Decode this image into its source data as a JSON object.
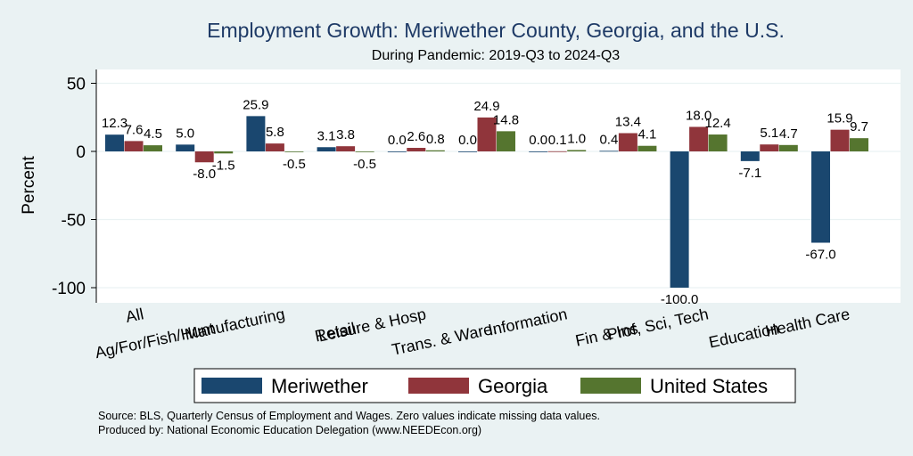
{
  "chart_data": {
    "type": "bar",
    "title": "Employment Growth: Meriwether County, Georgia, and the U.S.",
    "subtitle": "During Pandemic: 2019-Q3 to 2024-Q3",
    "ylabel": "Percent",
    "xlabel": "",
    "ylim": [
      -110,
      55
    ],
    "yticks": [
      50,
      0,
      -50,
      -100
    ],
    "grid": true,
    "legend_position": "bottom",
    "categories": [
      "All",
      "Ag/For/Fish/Hunt",
      "Manufacturing",
      "Retail",
      "Leisure & Hosp",
      "Trans. & Ware.",
      "Information",
      "Fin & Ins",
      "Prof, Sci, Tech",
      "Education",
      "Health Care"
    ],
    "value_labels": {
      "Meriwether": [
        "12.3",
        "5.0",
        "25.9",
        "3.1",
        "0.0",
        "0.0",
        "0.0",
        "0.4",
        "-100.0",
        "-7.1",
        "-67.0"
      ],
      "Georgia": [
        "7.6",
        "-8.0",
        "5.8",
        "3.8",
        "2.6",
        "24.9",
        "0.1",
        "13.4",
        "18.0",
        "5.1",
        "15.9"
      ],
      "United States": [
        "4.5",
        "-1.5",
        "-0.5",
        "-0.5",
        "0.8",
        "14.8",
        "1.0",
        "4.1",
        "12.4",
        "4.7",
        "9.7"
      ]
    },
    "series": [
      {
        "name": "Meriwether",
        "color": "#1a476f",
        "values": [
          12.3,
          5.0,
          25.9,
          3.1,
          0.0,
          0.0,
          0.0,
          0.4,
          -100.0,
          -7.1,
          -67.0
        ]
      },
      {
        "name": "Georgia",
        "color": "#90353b",
        "values": [
          7.6,
          -8.0,
          5.8,
          3.8,
          2.6,
          24.9,
          0.1,
          13.4,
          18.0,
          5.1,
          15.9
        ]
      },
      {
        "name": "United States",
        "color": "#55752f",
        "values": [
          4.5,
          -1.5,
          -0.5,
          -0.5,
          0.8,
          14.8,
          1.0,
          4.1,
          12.4,
          4.7,
          9.7
        ]
      }
    ],
    "source_lines": [
      "Source: BLS, Quarterly Census of Employment and Wages. Zero values indicate missing data values.",
      "Produced by: National Economic Education Delegation (www.NEEDEcon.org)"
    ]
  }
}
